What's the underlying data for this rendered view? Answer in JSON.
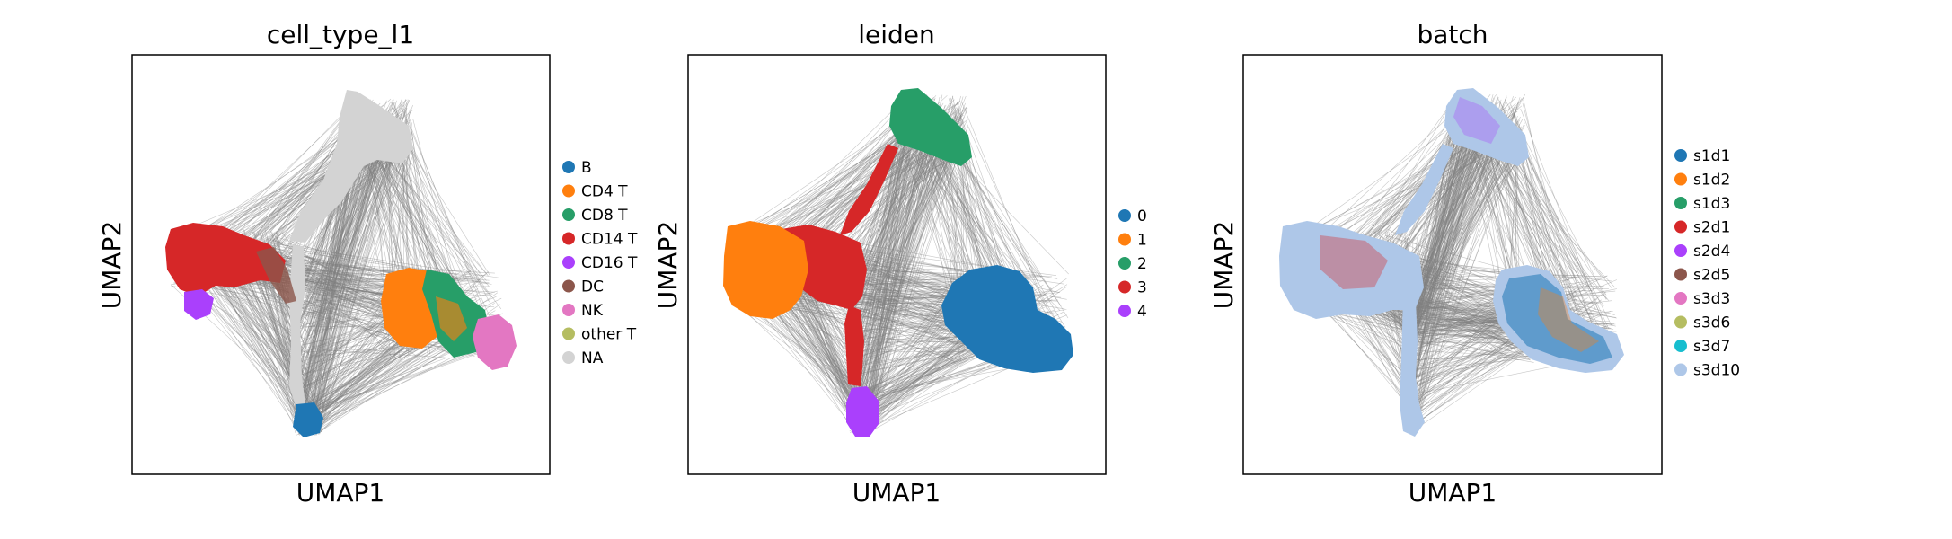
{
  "chart_data": [
    {
      "type": "scatter",
      "title": "cell_type_l1",
      "xlabel": "UMAP1",
      "ylabel": "UMAP2",
      "legend_placement": "right",
      "grid": false,
      "legend": [
        {
          "label": "B",
          "color": "#1f77b4"
        },
        {
          "label": "CD4 T",
          "color": "#ff7f0e"
        },
        {
          "label": "CD8 T",
          "color": "#279e68"
        },
        {
          "label": "CD14 T",
          "color": "#d62728"
        },
        {
          "label": "CD16 T",
          "color": "#aa40fc"
        },
        {
          "label": "DC",
          "color": "#8c564b"
        },
        {
          "label": "NK",
          "color": "#e377c2"
        },
        {
          "label": "other T",
          "color": "#b5bd61"
        },
        {
          "label": "NA",
          "color": "#d3d3d3"
        }
      ]
    },
    {
      "type": "scatter",
      "title": "leiden",
      "xlabel": "UMAP1",
      "ylabel": "UMAP2",
      "legend_placement": "right",
      "grid": false,
      "legend": [
        {
          "label": "0",
          "color": "#1f77b4"
        },
        {
          "label": "1",
          "color": "#ff7f0e"
        },
        {
          "label": "2",
          "color": "#279e68"
        },
        {
          "label": "3",
          "color": "#d62728"
        },
        {
          "label": "4",
          "color": "#aa40fc"
        }
      ]
    },
    {
      "type": "scatter",
      "title": "batch",
      "xlabel": "UMAP1",
      "ylabel": "UMAP2",
      "legend_placement": "right",
      "grid": false,
      "legend": [
        {
          "label": "s1d1",
          "color": "#1f77b4"
        },
        {
          "label": "s1d2",
          "color": "#ff7f0e"
        },
        {
          "label": "s1d3",
          "color": "#279e68"
        },
        {
          "label": "s2d1",
          "color": "#d62728"
        },
        {
          "label": "s2d4",
          "color": "#aa40fc"
        },
        {
          "label": "s2d5",
          "color": "#8c564b"
        },
        {
          "label": "s3d3",
          "color": "#e377c2"
        },
        {
          "label": "s3d6",
          "color": "#b5bd61"
        },
        {
          "label": "s3d7",
          "color": "#17becf"
        },
        {
          "label": "s3d10",
          "color": "#aec7e8"
        }
      ]
    }
  ],
  "colors": {
    "edges": "#808080",
    "frame": "#000000"
  }
}
